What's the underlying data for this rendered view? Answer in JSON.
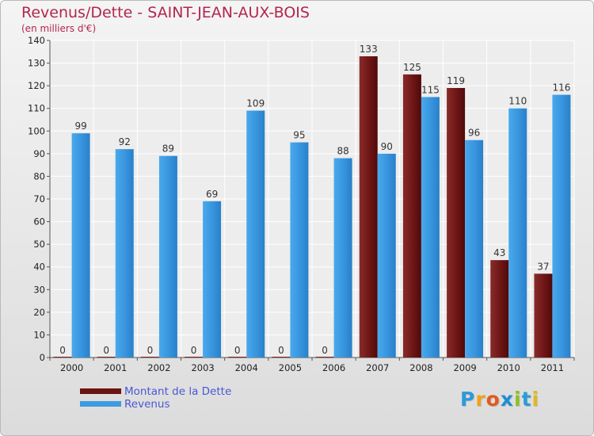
{
  "chart_data": {
    "type": "bar",
    "title": "Revenus/Dette - SAINT-JEAN-AUX-BOIS",
    "subtitle": "(en milliers d'€)",
    "categories": [
      "2000",
      "2001",
      "2002",
      "2003",
      "2004",
      "2005",
      "2006",
      "2007",
      "2008",
      "2009",
      "2010",
      "2011"
    ],
    "series": [
      {
        "name": "Montant de la Dette",
        "color": "#7a1e1e",
        "values": [
          0,
          0,
          0,
          0,
          0,
          0,
          0,
          133,
          125,
          119,
          43,
          37
        ]
      },
      {
        "name": "Revenus",
        "color": "#3d9be0",
        "values": [
          99,
          92,
          89,
          69,
          109,
          95,
          88,
          90,
          115,
          96,
          110,
          116
        ]
      }
    ],
    "ylim": [
      0,
      140
    ],
    "yticks": [
      0,
      10,
      20,
      30,
      40,
      50,
      60,
      70,
      80,
      90,
      100,
      110,
      120,
      130,
      140
    ],
    "grid": true,
    "legend_position": "bottom-left"
  },
  "logo": {
    "letters": [
      "P",
      "r",
      "o",
      "x",
      "i",
      "t",
      "i"
    ],
    "colors": [
      "#2c9ad8",
      "#f0a21b",
      "#e25a1e",
      "#1f8ed4",
      "#8fbf24",
      "#2c9ad8",
      "#e2b81e"
    ]
  }
}
